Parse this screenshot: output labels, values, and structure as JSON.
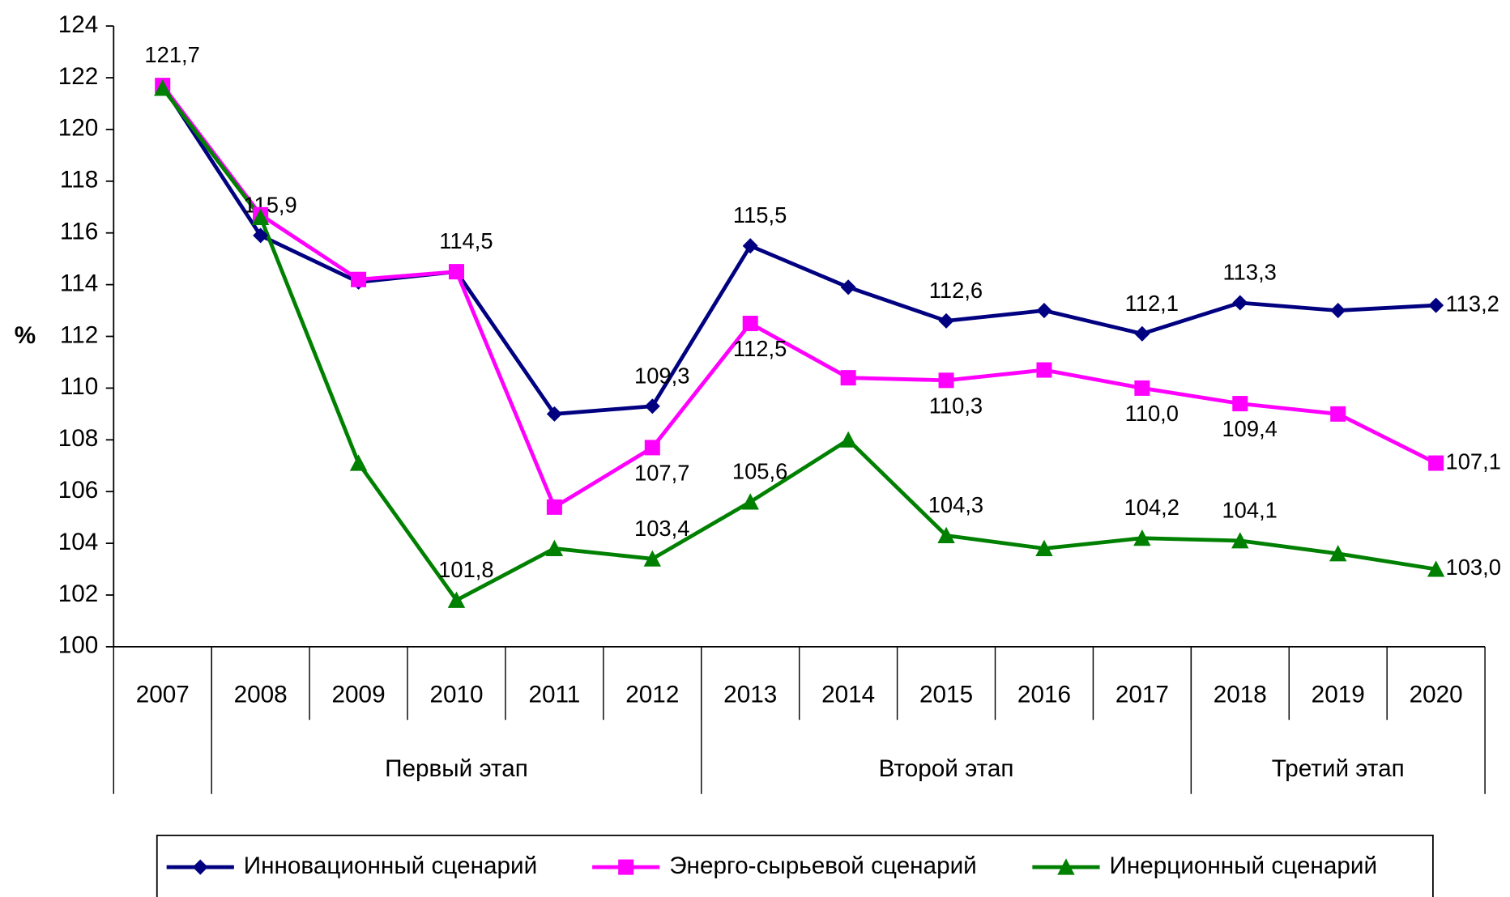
{
  "chart_data": {
    "type": "line",
    "ylabel": "%",
    "categories": [
      "2007",
      "2008",
      "2009",
      "2010",
      "2011",
      "2012",
      "2013",
      "2014",
      "2015",
      "2016",
      "2017",
      "2018",
      "2019",
      "2020"
    ],
    "groups": [
      {
        "label": null,
        "span": 1
      },
      {
        "label": "Первый этап",
        "span": 5
      },
      {
        "label": "Второй этап",
        "span": 5
      },
      {
        "label": "Третий этап",
        "span": 3
      }
    ],
    "ylim": [
      100,
      124
    ],
    "yticks": [
      100,
      102,
      104,
      106,
      108,
      110,
      112,
      114,
      116,
      118,
      120,
      122,
      124
    ],
    "grid": false,
    "legend": "bottom",
    "series": [
      {
        "name": "Инновационный сценарий",
        "color": "#000080",
        "marker": "diamond",
        "values": [
          121.7,
          115.9,
          114.1,
          114.5,
          109.0,
          109.3,
          115.5,
          113.9,
          112.6,
          113.0,
          112.1,
          113.3,
          113.0,
          113.2
        ],
        "value_labels": [
          "121,7",
          "115,9",
          null,
          "114,5",
          null,
          "109,3",
          "115,5",
          null,
          "112,6",
          null,
          "112,1",
          "113,3",
          null,
          "113,2"
        ]
      },
      {
        "name": "Энерго-сырьевой сценарий",
        "color": "#ff00ff",
        "marker": "square",
        "values": [
          121.7,
          116.7,
          114.2,
          114.5,
          105.4,
          107.7,
          112.5,
          110.4,
          110.3,
          110.7,
          110.0,
          109.4,
          109.0,
          107.1
        ],
        "value_labels": [
          null,
          null,
          null,
          null,
          null,
          "107,7",
          "112,5",
          null,
          "110,3",
          null,
          "110,0",
          "109,4",
          null,
          "107,1"
        ]
      },
      {
        "name": "Инерционный сценарий",
        "color": "#008000",
        "marker": "triangle",
        "values": [
          121.6,
          116.6,
          107.1,
          101.8,
          103.8,
          103.4,
          105.6,
          108.0,
          104.3,
          103.8,
          104.2,
          104.1,
          103.6,
          103.0
        ],
        "value_labels": [
          null,
          null,
          null,
          "101,8",
          null,
          "103,4",
          "105,6",
          null,
          "104,3",
          null,
          "104,2",
          "104,1",
          null,
          "103,0"
        ]
      }
    ]
  }
}
